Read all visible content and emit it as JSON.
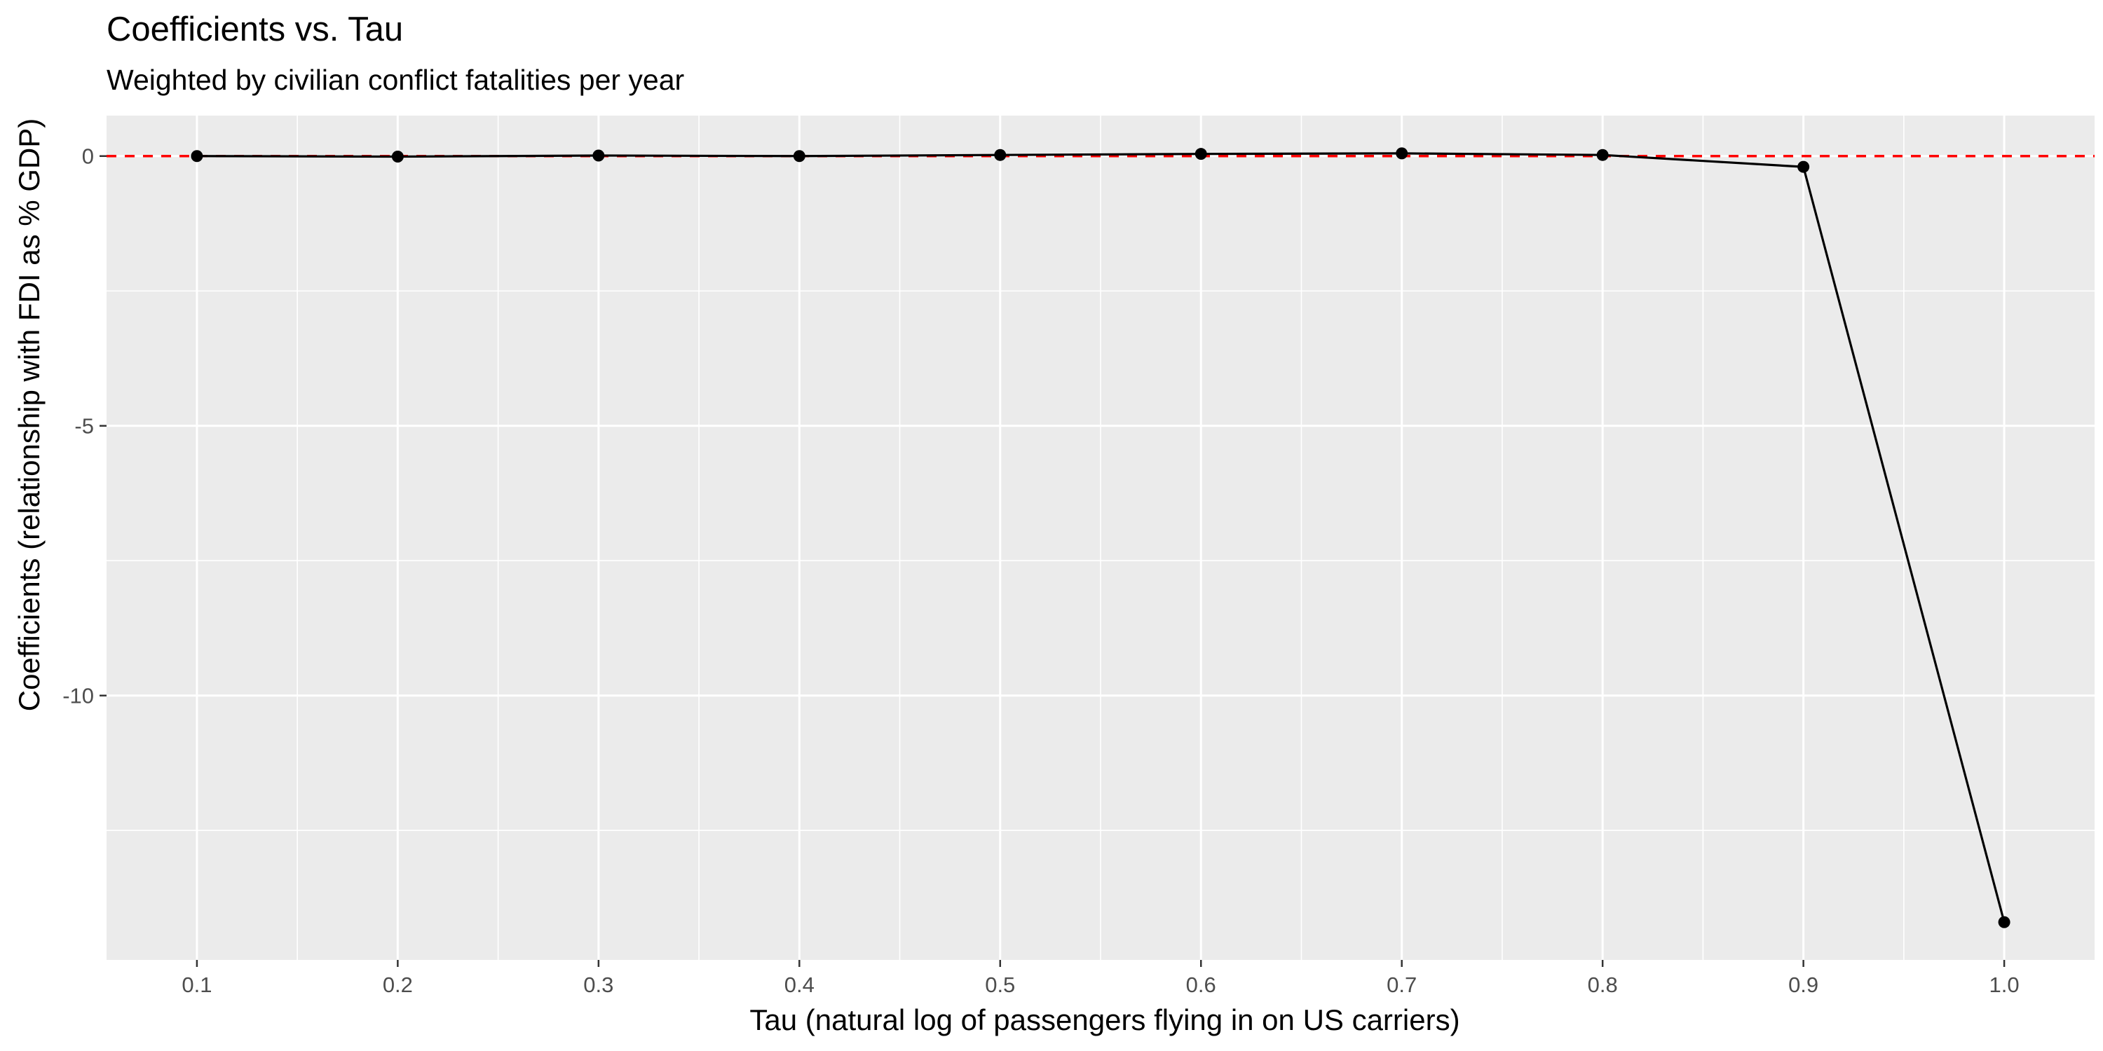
{
  "chart_data": {
    "type": "line",
    "title": "Coefficients vs. Tau",
    "subtitle": "Weighted by civilian conflict fatalities per year",
    "xlabel": "Tau (natural log of passengers flying in on US carriers)",
    "ylabel": "Coefficients (relationship with FDI as % GDP)",
    "x": [
      0.1,
      0.2,
      0.3,
      0.4,
      0.5,
      0.6,
      0.7,
      0.8,
      0.9,
      1.0
    ],
    "series": [
      {
        "values": [
          0.0,
          -0.01,
          0.01,
          0.0,
          0.02,
          0.04,
          0.05,
          0.02,
          -0.2,
          -14.2
        ]
      }
    ],
    "xlim": [
      0.055,
      1.045
    ],
    "ylim": [
      -14.9,
      0.75
    ],
    "xticks": [
      0.1,
      0.2,
      0.3,
      0.4,
      0.5,
      0.6,
      0.7,
      0.8,
      0.9,
      1.0
    ],
    "xtick_labels": [
      "0.1",
      "0.2",
      "0.3",
      "0.4",
      "0.5",
      "0.6",
      "0.7",
      "0.8",
      "0.9",
      "1.0"
    ],
    "yticks": [
      0,
      -5,
      -10
    ],
    "ytick_labels": [
      "0",
      "-5",
      "-10"
    ],
    "reference_line": {
      "y": 0,
      "style": "dashed",
      "color": "#ff0000"
    },
    "grid": true,
    "legend": "none",
    "colors": {
      "panel": "#ebebeb",
      "grid": "#ffffff",
      "line": "#000000",
      "point": "#000000"
    }
  }
}
